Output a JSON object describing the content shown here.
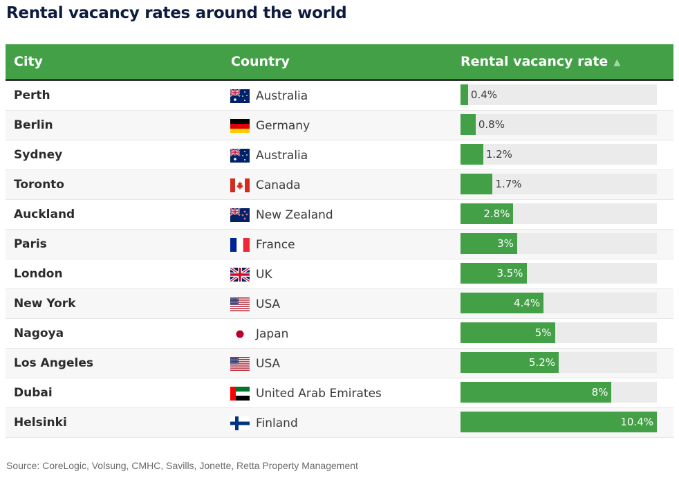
{
  "title": "Rental vacancy rates around the world",
  "table": {
    "headers": {
      "city": "City",
      "country": "Country",
      "rate": "Rental vacancy rate",
      "sort_icon": "sort-ascending-icon",
      "sort_glyph": "▲"
    }
  },
  "colors": {
    "header_bg": "#43a047",
    "bar_fill": "#43a047",
    "bar_track": "#ebebeb",
    "title": "#0d1b3e"
  },
  "source": "Source: CoreLogic, Volsung, CMHC, Savills, Jonette, Retta Property Management",
  "chart_data": {
    "type": "table",
    "title": "Rental vacancy rates around the world",
    "columns": [
      "City",
      "Country",
      "Rental vacancy rate"
    ],
    "sorted_by": "Rental vacancy rate",
    "sort_direction": "ascending",
    "bar_max": 10.4,
    "rows": [
      {
        "city": "Perth",
        "country": "Australia",
        "flag": "australia-flag-icon",
        "value": 0.4,
        "label": "0.4%"
      },
      {
        "city": "Berlin",
        "country": "Germany",
        "flag": "germany-flag-icon",
        "value": 0.8,
        "label": "0.8%"
      },
      {
        "city": "Sydney",
        "country": "Australia",
        "flag": "australia-flag-icon",
        "value": 1.2,
        "label": "1.2%"
      },
      {
        "city": "Toronto",
        "country": "Canada",
        "flag": "canada-flag-icon",
        "value": 1.7,
        "label": "1.7%"
      },
      {
        "city": "Auckland",
        "country": "New Zealand",
        "flag": "new-zealand-flag-icon",
        "value": 2.8,
        "label": "2.8%"
      },
      {
        "city": "Paris",
        "country": "France",
        "flag": "france-flag-icon",
        "value": 3,
        "label": "3%"
      },
      {
        "city": "London",
        "country": "UK",
        "flag": "uk-flag-icon",
        "value": 3.5,
        "label": "3.5%"
      },
      {
        "city": "New York",
        "country": "USA",
        "flag": "usa-flag-icon",
        "value": 4.4,
        "label": "4.4%"
      },
      {
        "city": "Nagoya",
        "country": "Japan",
        "flag": "japan-flag-icon",
        "value": 5,
        "label": "5%"
      },
      {
        "city": "Los Angeles",
        "country": "USA",
        "flag": "usa-flag-icon",
        "value": 5.2,
        "label": "5.2%"
      },
      {
        "city": "Dubai",
        "country": "United Arab Emirates",
        "flag": "uae-flag-icon",
        "value": 8,
        "label": "8%"
      },
      {
        "city": "Helsinki",
        "country": "Finland",
        "flag": "finland-flag-icon",
        "value": 10.4,
        "label": "10.4%"
      }
    ]
  }
}
